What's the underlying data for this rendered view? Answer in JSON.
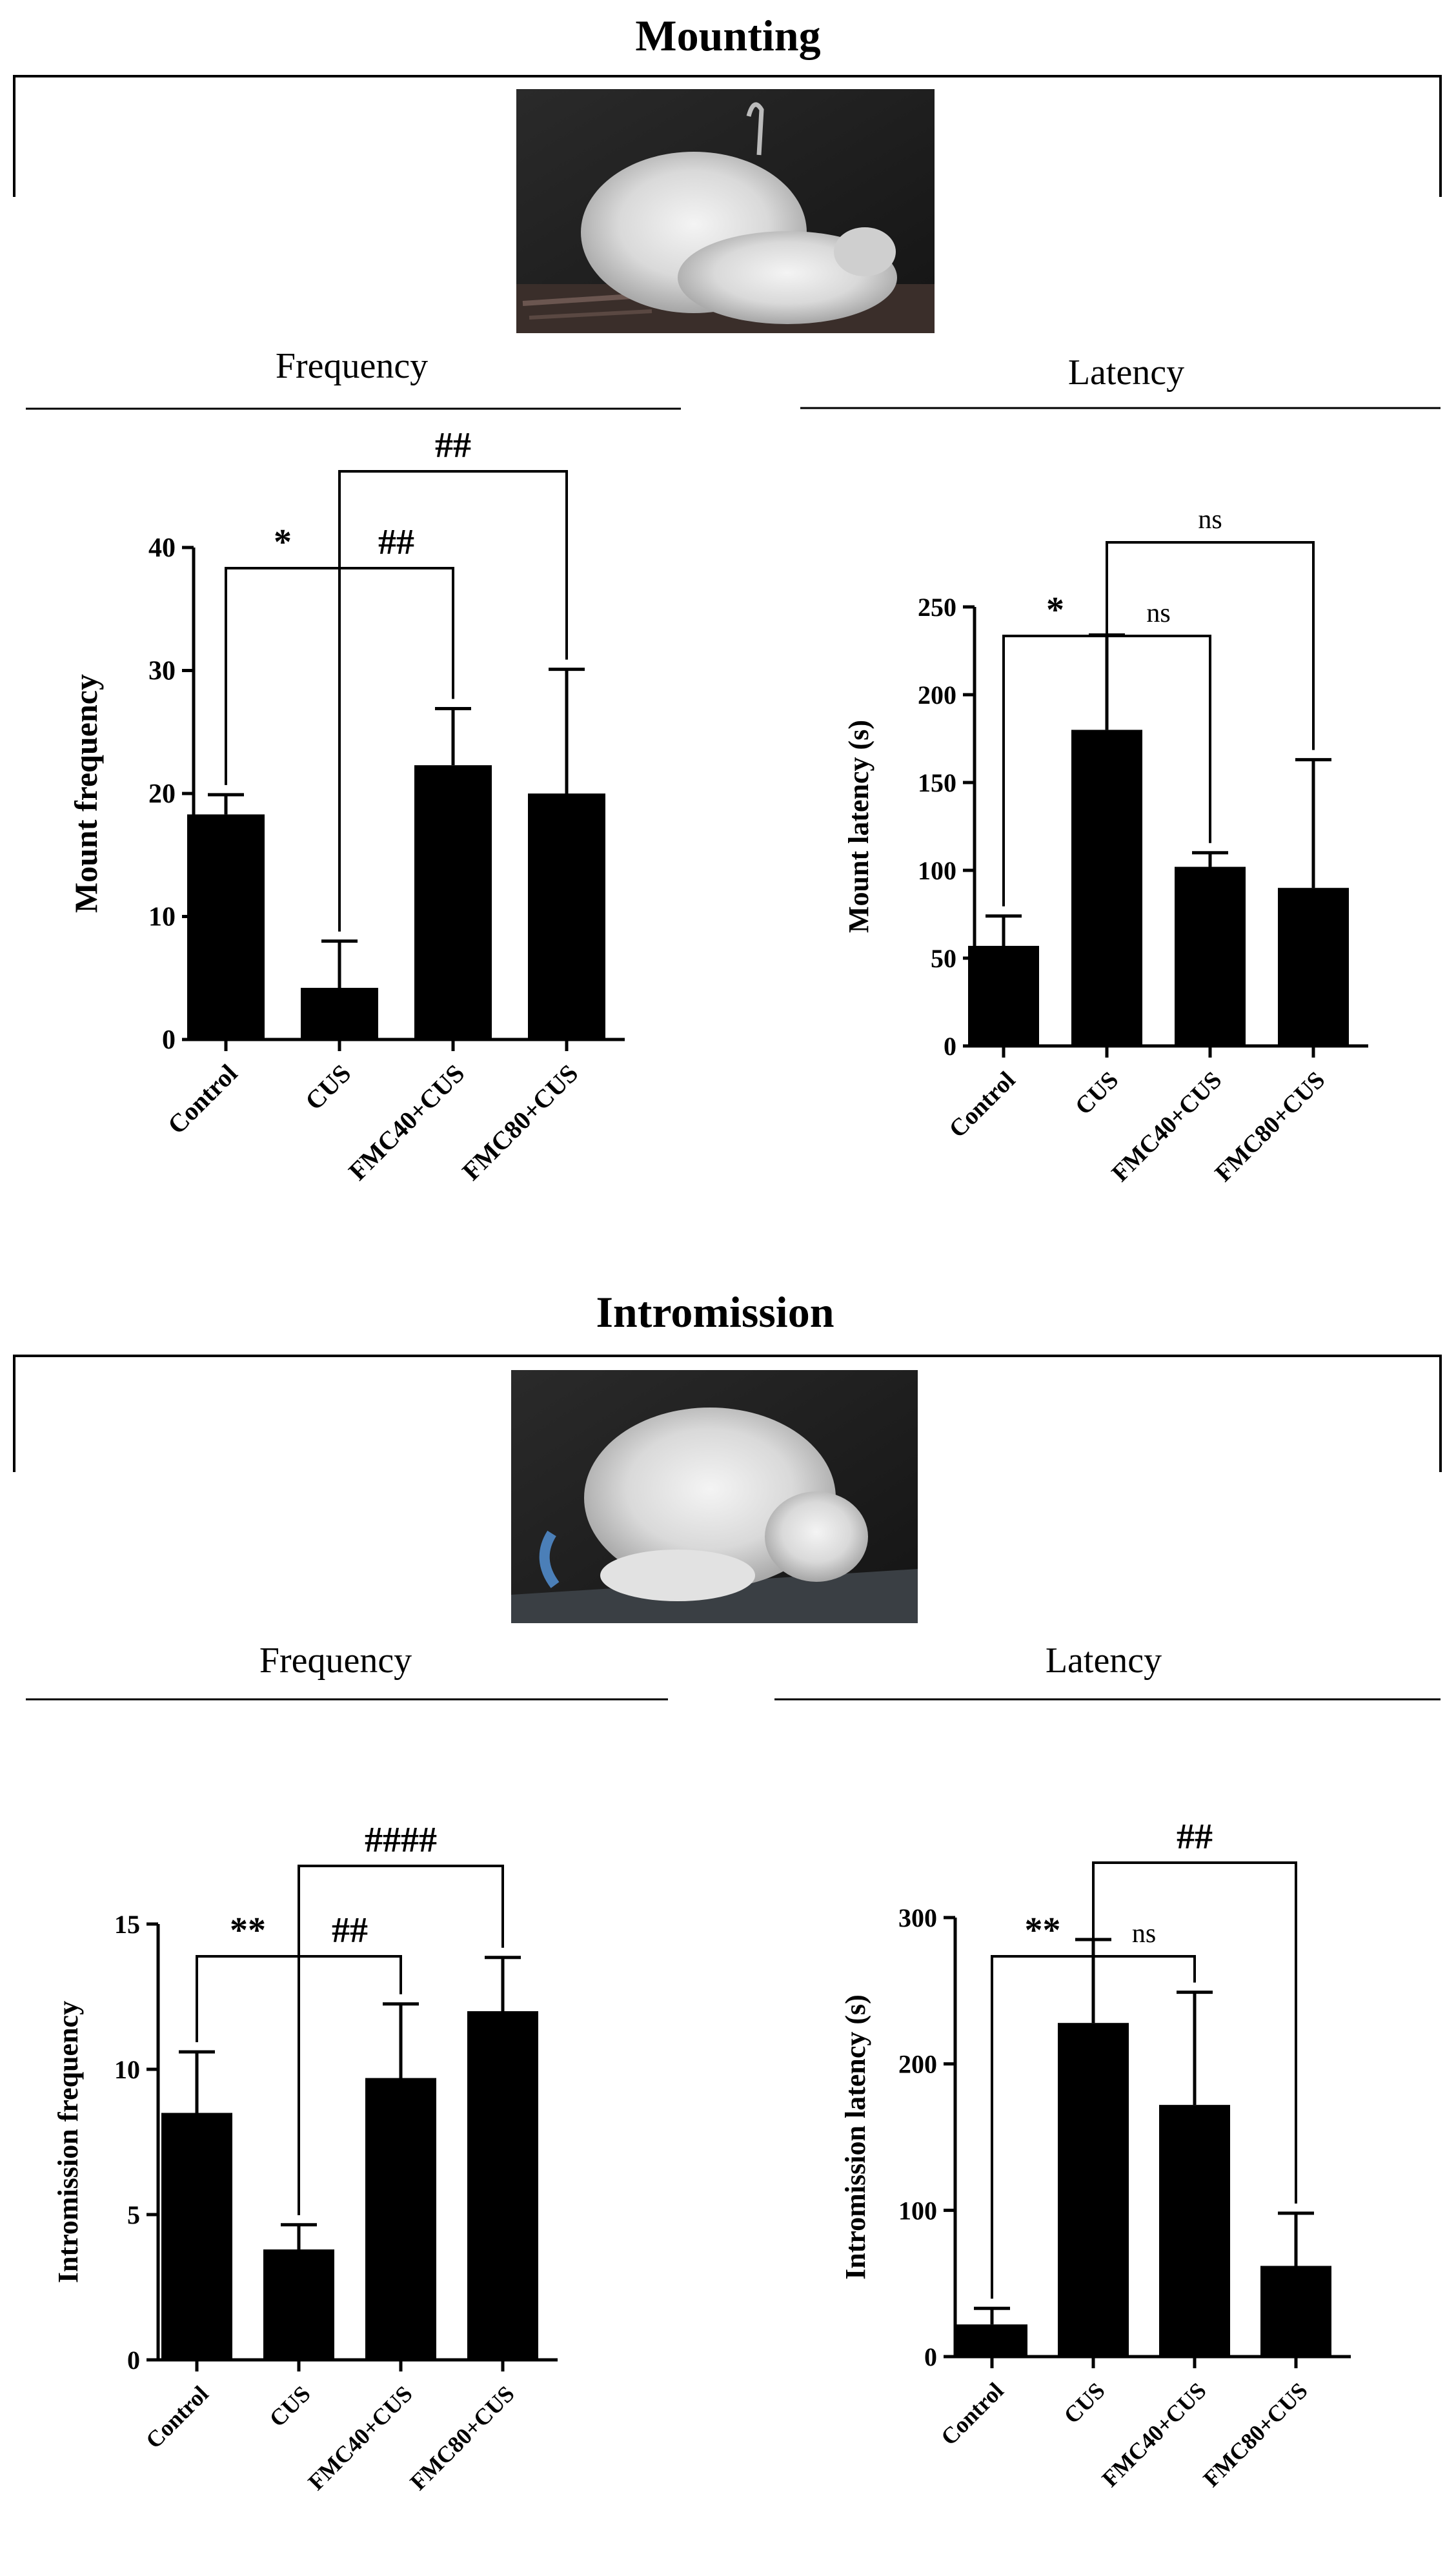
{
  "sections": [
    {
      "title": "Mounting",
      "photo_label": "mounting-photo"
    },
    {
      "title": "Intromission",
      "photo_label": "intromission-photo"
    }
  ],
  "colors": {
    "bar": "#000000",
    "axis": "#000000",
    "background": "#ffffff"
  },
  "chart_data": [
    {
      "id": "mount-frequency",
      "type": "bar",
      "panel_title": "Frequency",
      "ylabel": "Mount frequency",
      "categories": [
        "Control",
        "CUS",
        "FMC40+CUS",
        "FMC80+CUS"
      ],
      "values": [
        18.3,
        4.2,
        22.3,
        20.0
      ],
      "errors": [
        1.6,
        3.8,
        4.6,
        10.1
      ],
      "ylim": [
        0,
        40
      ],
      "yticks": [
        "0",
        "10",
        "20",
        "30",
        "40"
      ],
      "comparisons": [
        {
          "from": 0,
          "to": 1,
          "label": "*"
        },
        {
          "from": 1,
          "to": 2,
          "label": "##"
        },
        {
          "from": 1,
          "to": 3,
          "label": "##"
        }
      ]
    },
    {
      "id": "mount-latency",
      "type": "bar",
      "panel_title": "Latency",
      "ylabel": "Mount latency (s)",
      "categories": [
        "Control",
        "CUS",
        "FMC40+CUS",
        "FMC80+CUS"
      ],
      "values": [
        57,
        180,
        102,
        90
      ],
      "errors": [
        17,
        54,
        8,
        73
      ],
      "ylim": [
        0,
        250
      ],
      "yticks": [
        "0",
        "50",
        "100",
        "150",
        "200",
        "250"
      ],
      "comparisons": [
        {
          "from": 0,
          "to": 1,
          "label": "*"
        },
        {
          "from": 1,
          "to": 2,
          "label": "ns"
        },
        {
          "from": 1,
          "to": 3,
          "label": "ns"
        }
      ]
    },
    {
      "id": "intromission-frequency",
      "type": "bar",
      "panel_title": "Frequency",
      "ylabel": "Intromission frequency",
      "categories": [
        "Control",
        "CUS",
        "FMC40+CUS",
        "FMC80+CUS"
      ],
      "values": [
        8.5,
        3.8,
        9.7,
        12.0
      ],
      "errors": [
        2.1,
        0.85,
        2.55,
        1.85
      ],
      "ylim": [
        0,
        15
      ],
      "yticks": [
        "0",
        "5",
        "10",
        "15"
      ],
      "comparisons": [
        {
          "from": 0,
          "to": 1,
          "label": "**"
        },
        {
          "from": 1,
          "to": 2,
          "label": "##"
        },
        {
          "from": 1,
          "to": 3,
          "label": "####"
        }
      ]
    },
    {
      "id": "intromission-latency",
      "type": "bar",
      "panel_title": "Latency",
      "ylabel": "Intromission latency (s)",
      "categories": [
        "Control",
        "CUS",
        "FMC40+CUS",
        "FMC80+CUS"
      ],
      "values": [
        22,
        228,
        172,
        62
      ],
      "errors": [
        11,
        57,
        77,
        36
      ],
      "ylim": [
        0,
        300
      ],
      "yticks": [
        "0",
        "100",
        "200",
        "300"
      ],
      "comparisons": [
        {
          "from": 0,
          "to": 1,
          "label": "**"
        },
        {
          "from": 1,
          "to": 2,
          "label": "ns"
        },
        {
          "from": 1,
          "to": 3,
          "label": "##"
        }
      ]
    }
  ]
}
